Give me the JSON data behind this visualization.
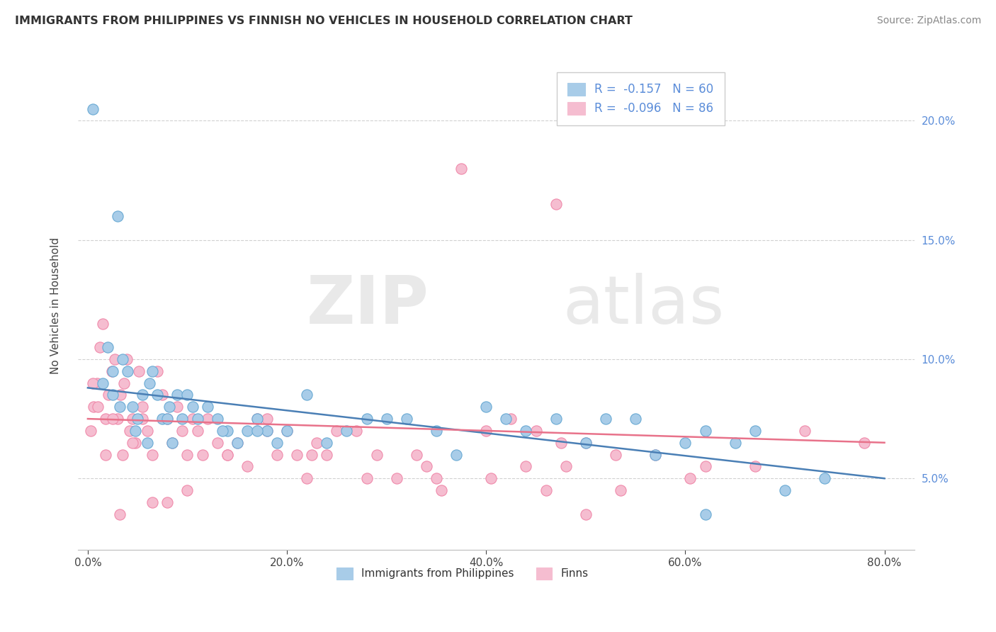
{
  "title": "IMMIGRANTS FROM PHILIPPINES VS FINNISH NO VEHICLES IN HOUSEHOLD CORRELATION CHART",
  "source": "Source: ZipAtlas.com",
  "ylabel": "No Vehicles in Household",
  "xlabel_vals": [
    0.0,
    20.0,
    40.0,
    60.0,
    80.0
  ],
  "ylabel_vals": [
    5.0,
    10.0,
    15.0,
    20.0
  ],
  "ylim": [
    2.0,
    22.5
  ],
  "xlim": [
    -1.0,
    83.0
  ],
  "blue_R": -0.157,
  "blue_N": 60,
  "pink_R": -0.096,
  "pink_N": 86,
  "blue_color": "#a8cce8",
  "pink_color": "#f5bdd0",
  "blue_edge_color": "#6aaad4",
  "pink_edge_color": "#f08aab",
  "blue_line_color": "#4a7fb5",
  "pink_line_color": "#e8728a",
  "ytick_color": "#5b8dd9",
  "legend_label_blue": "Immigrants from Philippines",
  "legend_label_pink": "Finns",
  "watermark_zip": "ZIP",
  "watermark_atlas": "atlas",
  "blue_trend_y0": 8.8,
  "blue_trend_y1": 5.0,
  "pink_trend_y0": 7.5,
  "pink_trend_y1": 6.5,
  "blue_scatter_x": [
    0.5,
    1.5,
    2.0,
    2.5,
    3.0,
    3.5,
    4.0,
    4.5,
    5.0,
    5.5,
    6.0,
    6.5,
    7.0,
    7.5,
    8.0,
    8.5,
    9.0,
    9.5,
    10.0,
    11.0,
    12.0,
    13.0,
    14.0,
    15.0,
    16.0,
    17.0,
    18.0,
    19.0,
    20.0,
    22.0,
    24.0,
    26.0,
    28.0,
    30.0,
    32.0,
    35.0,
    37.0,
    40.0,
    42.0,
    44.0,
    47.0,
    50.0,
    52.0,
    55.0,
    57.0,
    60.0,
    62.0,
    65.0,
    67.0,
    70.0,
    2.5,
    3.2,
    4.8,
    6.2,
    8.2,
    10.5,
    13.5,
    17.0,
    62.0,
    74.0
  ],
  "blue_scatter_y": [
    20.5,
    9.0,
    10.5,
    8.5,
    16.0,
    10.0,
    9.5,
    8.0,
    7.5,
    8.5,
    6.5,
    9.5,
    8.5,
    7.5,
    7.5,
    6.5,
    8.5,
    7.5,
    8.5,
    7.5,
    8.0,
    7.5,
    7.0,
    6.5,
    7.0,
    7.5,
    7.0,
    6.5,
    7.0,
    8.5,
    6.5,
    7.0,
    7.5,
    7.5,
    7.5,
    7.0,
    6.0,
    8.0,
    7.5,
    7.0,
    7.5,
    6.5,
    7.5,
    7.5,
    6.0,
    6.5,
    7.0,
    6.5,
    7.0,
    4.5,
    9.5,
    8.0,
    7.0,
    9.0,
    8.0,
    8.0,
    7.0,
    7.0,
    3.5,
    5.0
  ],
  "pink_scatter_x": [
    0.3,
    0.6,
    0.9,
    1.2,
    1.5,
    1.8,
    2.1,
    2.4,
    2.7,
    3.0,
    3.3,
    3.6,
    3.9,
    4.2,
    4.5,
    4.8,
    5.1,
    5.5,
    6.0,
    6.5,
    7.0,
    7.5,
    8.0,
    8.5,
    9.0,
    9.5,
    10.0,
    10.5,
    11.0,
    11.5,
    12.0,
    13.0,
    14.0,
    15.0,
    16.0,
    17.0,
    18.0,
    19.0,
    20.0,
    21.0,
    22.0,
    23.0,
    24.0,
    25.0,
    27.0,
    29.0,
    31.0,
    33.0,
    35.0,
    37.5,
    40.0,
    42.5,
    45.0,
    47.5,
    50.0,
    53.0,
    57.0,
    62.0,
    67.0,
    72.0,
    0.5,
    1.0,
    1.8,
    2.5,
    3.5,
    4.5,
    5.5,
    6.5,
    8.0,
    10.0,
    14.0,
    18.0,
    22.5,
    28.0,
    34.0,
    40.5,
    47.0,
    53.5,
    60.5,
    3.2,
    35.5,
    78.0,
    44.0,
    46.0,
    48.0,
    50.0
  ],
  "pink_scatter_y": [
    7.0,
    8.0,
    9.0,
    10.5,
    11.5,
    7.5,
    8.5,
    9.5,
    10.0,
    7.5,
    8.5,
    9.0,
    10.0,
    7.0,
    7.5,
    6.5,
    9.5,
    8.0,
    7.0,
    6.0,
    9.5,
    8.5,
    7.5,
    6.5,
    8.0,
    7.0,
    6.0,
    7.5,
    7.0,
    6.0,
    7.5,
    6.5,
    6.0,
    6.5,
    5.5,
    7.5,
    7.0,
    6.0,
    7.0,
    6.0,
    5.0,
    6.5,
    6.0,
    7.0,
    7.0,
    6.0,
    5.0,
    6.0,
    5.0,
    18.0,
    7.0,
    7.5,
    7.0,
    6.5,
    6.5,
    6.0,
    6.0,
    5.5,
    5.5,
    7.0,
    9.0,
    8.0,
    6.0,
    7.5,
    6.0,
    6.5,
    7.5,
    4.0,
    4.0,
    4.5,
    6.0,
    7.5,
    6.0,
    5.0,
    5.5,
    5.0,
    16.5,
    4.5,
    5.0,
    3.5,
    4.5,
    6.5,
    5.5,
    4.5,
    5.5,
    3.5
  ]
}
